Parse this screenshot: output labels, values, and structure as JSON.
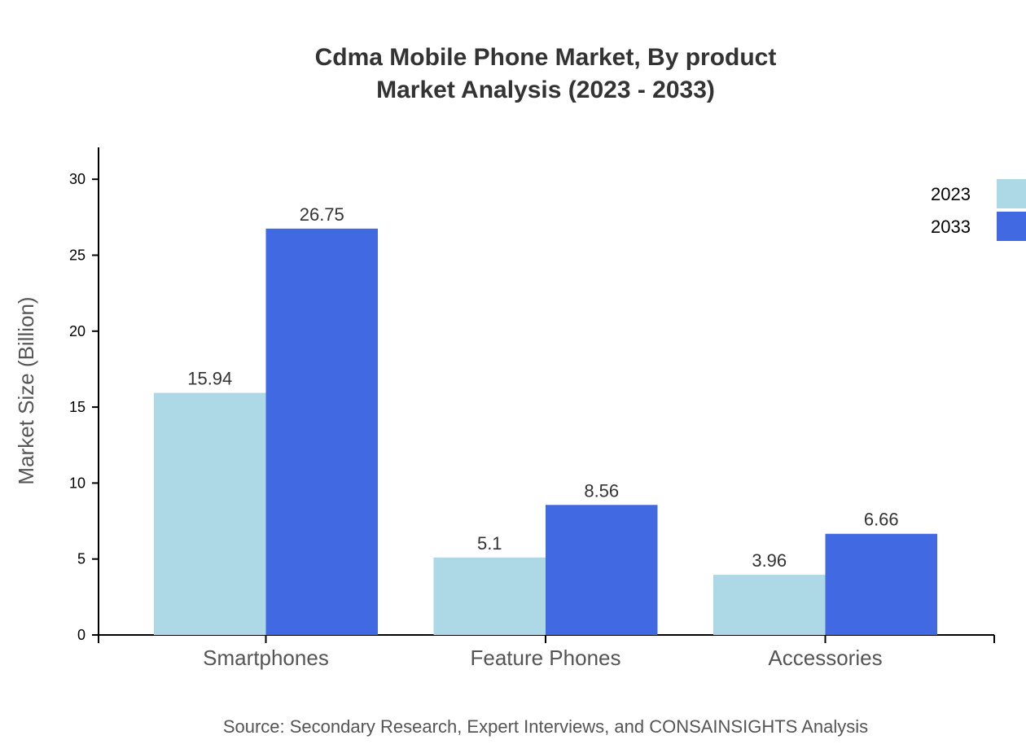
{
  "chart_data": {
    "type": "bar",
    "title": "Cdma Mobile Phone Market, By product",
    "subtitle": "Market Analysis (2023 - 2033)",
    "xlabel": "",
    "ylabel": "Market Size (Billion)",
    "ylim": [
      0,
      32.1
    ],
    "yticks": [
      0,
      5,
      10,
      15,
      20,
      25,
      30
    ],
    "grid": false,
    "legend_position": "top-right",
    "categories": [
      "Smartphones",
      "Feature Phones",
      "Accessories"
    ],
    "series": [
      {
        "name": "2023",
        "color": "#add8e6",
        "values": [
          15.94,
          5.1,
          3.96
        ]
      },
      {
        "name": "2033",
        "color": "#4169e1",
        "values": [
          26.75,
          8.56,
          6.66
        ]
      }
    ],
    "source": "Source: Secondary Research, Expert Interviews, and CONSAINSIGHTS Analysis"
  }
}
